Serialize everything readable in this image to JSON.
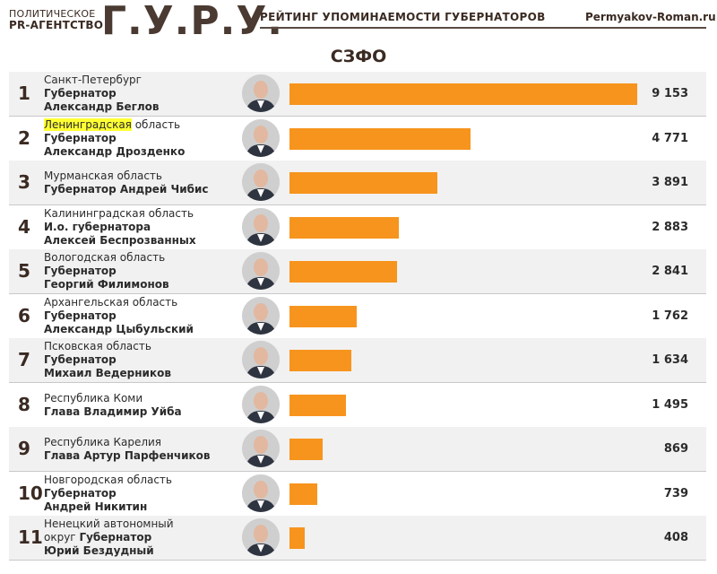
{
  "header": {
    "agency_line1": "ПОЛИТИЧЕСКОЕ",
    "agency_line2": "PR-АГЕНТСТВО",
    "logo": "Г.У.Р.У.",
    "subtitle": "РЕЙТИНГ УПОМИНАЕМОСТИ ГУБЕРНАТОРОВ",
    "site": "Permyakov-Roman.ru"
  },
  "chart_data": {
    "type": "bar",
    "title": "СЗФО",
    "xlim": [
      0,
      9153
    ],
    "rows": [
      {
        "rank": "1",
        "region": "Санкт-Петербург",
        "person_line1": "Губернатор",
        "person_line2": "Александр Беглов",
        "value": 9153,
        "value_label": "9 153",
        "avatar_icon": "portrait-icon"
      },
      {
        "rank": "2",
        "region_highlight": "Ленинградская",
        "region_rest": " область",
        "person_line1": "Губернатор",
        "person_line2": "Александр Дрозденко",
        "value": 4771,
        "value_label": "4 771",
        "avatar_icon": "portrait-icon"
      },
      {
        "rank": "3",
        "region": "Мурманская область",
        "person_line1": "Губернатор Андрей Чибис",
        "person_line2": "",
        "value": 3891,
        "value_label": "3 891",
        "avatar_icon": "portrait-icon"
      },
      {
        "rank": "4",
        "region": "Калининградская область",
        "person_line1": "И.о. губернатора",
        "person_line2": "Алексей Беспрозванных",
        "value": 2883,
        "value_label": "2 883",
        "avatar_icon": "portrait-icon"
      },
      {
        "rank": "5",
        "region": "Вологодская область",
        "person_line1": "Губернатор",
        "person_line2": "Георгий Филимонов",
        "value": 2841,
        "value_label": "2 841",
        "avatar_icon": "portrait-icon"
      },
      {
        "rank": "6",
        "region": "Архангельская область",
        "person_line1": "Губернатор",
        "person_line2": "Александр Цыбульский",
        "value": 1762,
        "value_label": "1 762",
        "avatar_icon": "portrait-icon"
      },
      {
        "rank": "7",
        "region": "Псковская область",
        "person_line1": "Губернатор",
        "person_line2": "Михаил Ведерников",
        "value": 1634,
        "value_label": "1 634",
        "avatar_icon": "portrait-icon"
      },
      {
        "rank": "8",
        "region": "Республика Коми",
        "person_line1": "Глава Владимир Уйба",
        "person_line2": "",
        "value": 1495,
        "value_label": "1 495",
        "avatar_icon": "portrait-icon"
      },
      {
        "rank": "9",
        "region": "Республика Карелия",
        "person_line1": "Глава Артур Парфенчиков",
        "person_line2": "",
        "value": 869,
        "value_label": "869",
        "avatar_icon": "portrait-icon"
      },
      {
        "rank": "10",
        "region": "Новгородская область",
        "person_line1": "Губернатор",
        "person_line2": "Андрей Никитин",
        "value": 739,
        "value_label": "739",
        "avatar_icon": "portrait-icon"
      },
      {
        "rank": "11",
        "region": "Ненецкий автономный",
        "region_tail": "округ ",
        "person_line1": "Губернатор",
        "person_line2": "Юрий Бездудный",
        "value": 408,
        "value_label": "408",
        "avatar_icon": "portrait-icon"
      }
    ]
  },
  "colors": {
    "bar": "#f7941d",
    "highlight": "#ffff33",
    "header_text": "#3a2a22"
  }
}
